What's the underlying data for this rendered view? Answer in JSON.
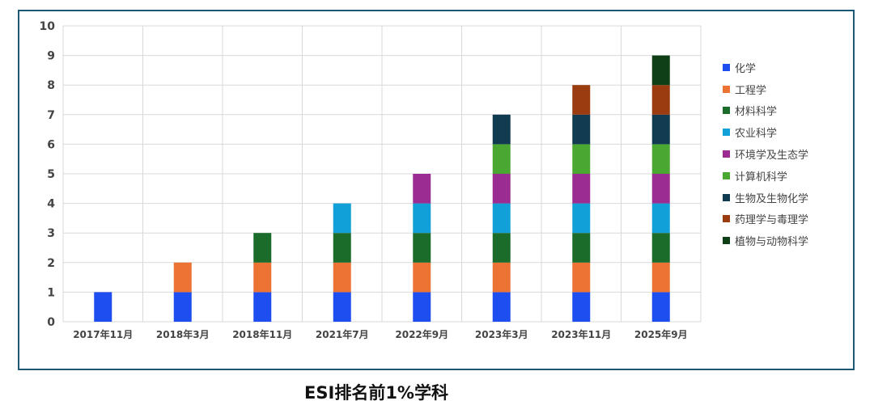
{
  "chart_data": {
    "type": "bar",
    "stacked": true,
    "title": "ESI排名前1%学科",
    "xlabel": "",
    "ylabel": "",
    "ylim": [
      0,
      10
    ],
    "yticks": [
      0,
      1,
      2,
      3,
      4,
      5,
      6,
      7,
      8,
      9,
      10
    ],
    "grid": true,
    "legend_position": "right",
    "categories": [
      "2017年11月",
      "2018年3月",
      "2018年11月",
      "2021年7月",
      "2022年9月",
      "2023年3月",
      "2023年11月",
      "2025年9月"
    ],
    "series": [
      {
        "name": "化学",
        "color": "#1f4ef0",
        "values": [
          1,
          1,
          1,
          1,
          1,
          1,
          1,
          1
        ]
      },
      {
        "name": "工程学",
        "color": "#ec7333",
        "values": [
          0,
          1,
          1,
          1,
          1,
          1,
          1,
          1
        ]
      },
      {
        "name": "材料科学",
        "color": "#1b6b2a",
        "values": [
          0,
          0,
          1,
          1,
          1,
          1,
          1,
          1
        ]
      },
      {
        "name": "农业科学",
        "color": "#12a0d8",
        "values": [
          0,
          0,
          0,
          1,
          1,
          1,
          1,
          1
        ]
      },
      {
        "name": "环境学及生态学",
        "color": "#9b2c91",
        "values": [
          0,
          0,
          0,
          0,
          1,
          1,
          1,
          1
        ]
      },
      {
        "name": "计算机科学",
        "color": "#4aa832",
        "values": [
          0,
          0,
          0,
          0,
          0,
          1,
          1,
          1
        ]
      },
      {
        "name": "生物及生物化学",
        "color": "#103b50",
        "values": [
          0,
          0,
          0,
          0,
          0,
          1,
          1,
          1
        ]
      },
      {
        "name": "药理学与毒理学",
        "color": "#9a3c10",
        "values": [
          0,
          0,
          0,
          0,
          0,
          0,
          1,
          1
        ]
      },
      {
        "name": "植物与动物科学",
        "color": "#0f3f17",
        "values": [
          0,
          0,
          0,
          0,
          0,
          0,
          0,
          1
        ]
      }
    ]
  }
}
